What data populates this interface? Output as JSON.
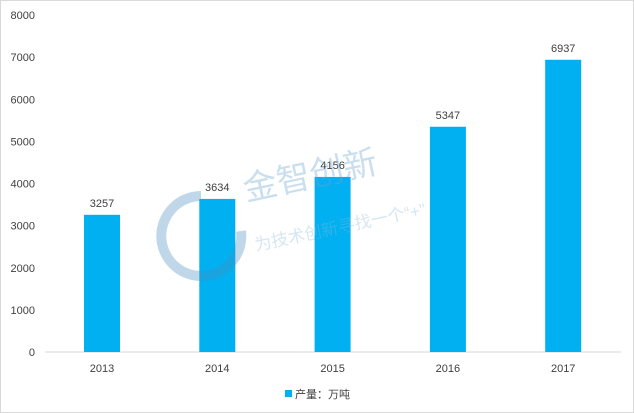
{
  "chart_data": {
    "type": "bar",
    "categories": [
      "2013",
      "2014",
      "2015",
      "2016",
      "2017"
    ],
    "series": [
      {
        "name": "产量：万吨",
        "values": [
          3257,
          3634,
          4156,
          5347,
          6937
        ],
        "color": "#00b0f0"
      }
    ],
    "ylim": [
      0,
      8000
    ],
    "yticks": [
      0,
      1000,
      2000,
      3000,
      4000,
      5000,
      6000,
      7000,
      8000
    ],
    "grid": false,
    "legend": "bottom",
    "data_labels": true
  },
  "watermark": {
    "title": "金智创新",
    "subtitle": "为技术创新寻找一个“+”"
  }
}
